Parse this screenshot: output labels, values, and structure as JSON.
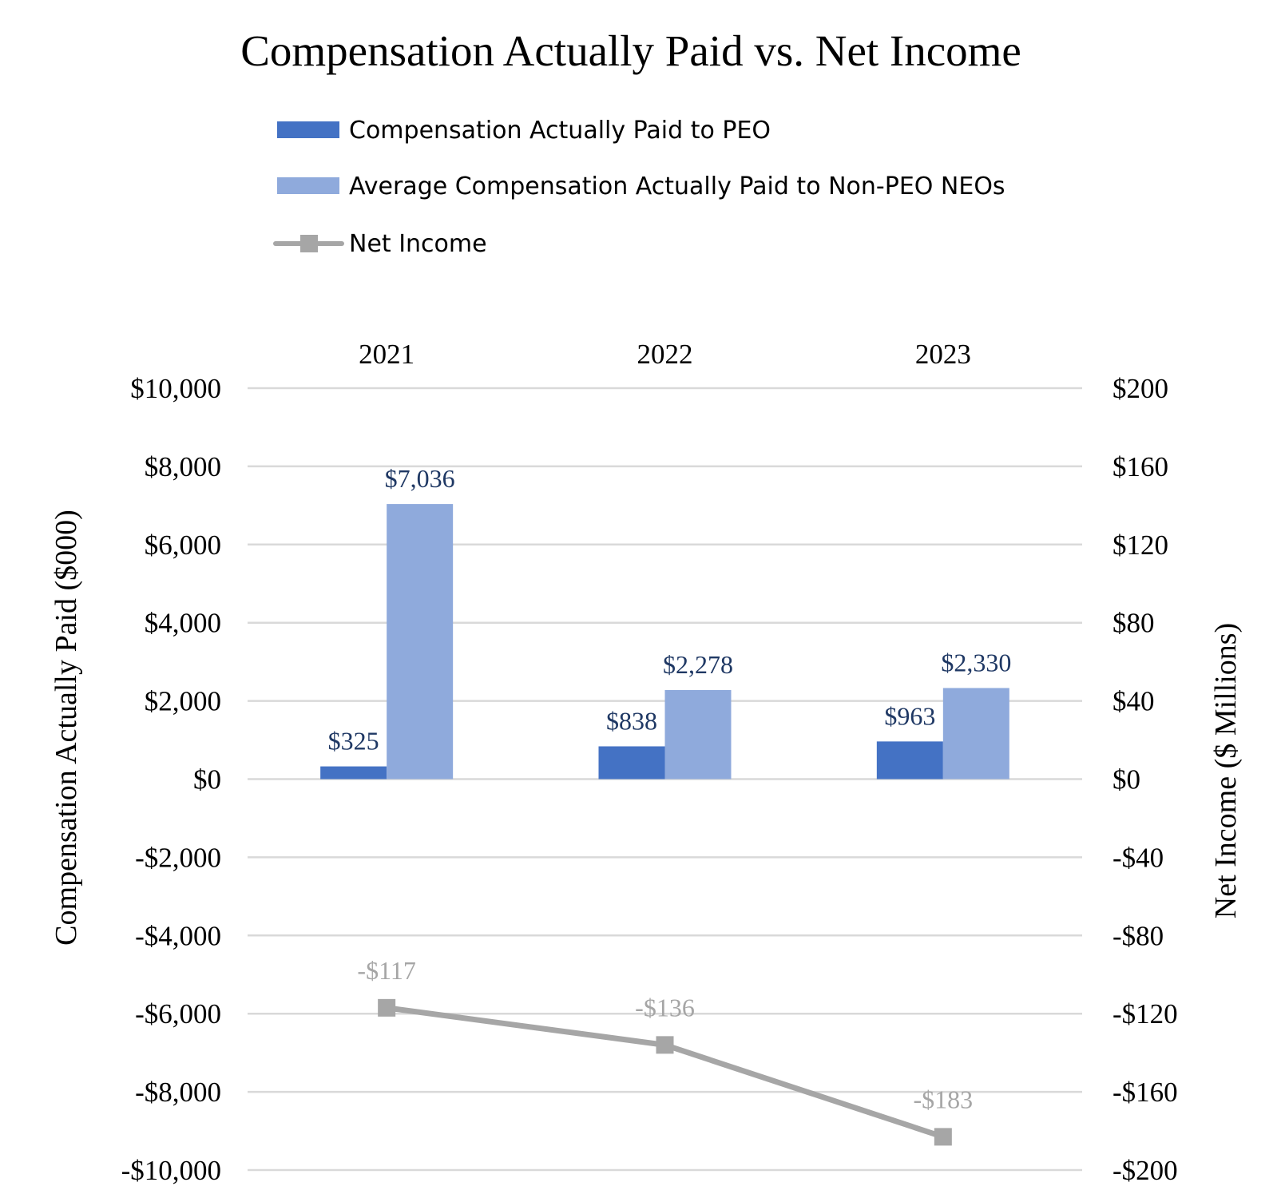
{
  "chart_data": {
    "type": "bar",
    "title": "Compensation Actually Paid vs. Net Income",
    "categories": [
      "2021",
      "2022",
      "2023"
    ],
    "ylabel": "Compensation Actually Paid ($000)",
    "y2label": "Net Income ($ Millions)",
    "ylim": [
      -10000,
      10000
    ],
    "y2lim": [
      -200,
      200
    ],
    "y_ticks": [
      "$10,000",
      "$8,000",
      "$6,000",
      "$4,000",
      "$2,000",
      "$0",
      "-$2,000",
      "-$4,000",
      "-$6,000",
      "-$8,000",
      "-$10,000"
    ],
    "y2_ticks": [
      "$200",
      "$160",
      "$120",
      "$80",
      "$40",
      "$0",
      "-$40",
      "-$80",
      "-$120",
      "-$160",
      "-$200"
    ],
    "grid": true,
    "legend_position": "top",
    "series": [
      {
        "name": "Compensation Actually Paid to PEO",
        "type": "bar",
        "axis": "left",
        "color": "#4472c4",
        "values": [
          325,
          838,
          963
        ],
        "labels": [
          "$325",
          "$838",
          "$963"
        ]
      },
      {
        "name": "Average Compensation Actually Paid to Non-PEO NEOs",
        "type": "bar",
        "axis": "left",
        "color": "#8faadc",
        "values": [
          7036,
          2278,
          2330
        ],
        "labels": [
          "$7,036",
          "$2,278",
          "$2,330"
        ]
      },
      {
        "name": "Net Income",
        "type": "line",
        "axis": "right",
        "color": "#a6a6a6",
        "marker": "square",
        "values": [
          -117,
          -136,
          -183
        ],
        "labels": [
          "-$117",
          "-$136",
          "-$183"
        ]
      }
    ],
    "colors": {
      "grid": "#d9d9d9",
      "text": "#000000",
      "bar_label": "#1f3864",
      "line_label": "#a6a6a6"
    }
  }
}
